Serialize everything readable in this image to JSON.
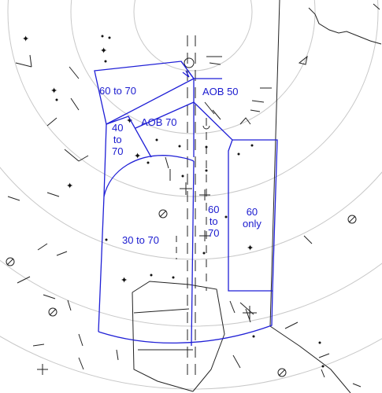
{
  "map": {
    "colors": {
      "zone_outline": "#1f1fd6",
      "zone_label": "#1a1acf",
      "range_rings": "#c8c8c8",
      "terrain": "#222222",
      "background": "#ffffff"
    },
    "zones": [
      {
        "id": "z60to70_top",
        "label": "60 to 70"
      },
      {
        "id": "zaob50",
        "label": "AOB 50"
      },
      {
        "id": "zaob70",
        "label": "AOB 70"
      },
      {
        "id": "z40to70",
        "label": "40\nto\n70"
      },
      {
        "id": "z60to70_mid",
        "label": "60\nto\n70"
      },
      {
        "id": "z60only",
        "label": "60\nonly"
      },
      {
        "id": "z30to70",
        "label": "30 to 70"
      }
    ],
    "icons": [
      "star-icon",
      "triangle-icon",
      "circle-slash-icon",
      "dot-icon"
    ]
  }
}
